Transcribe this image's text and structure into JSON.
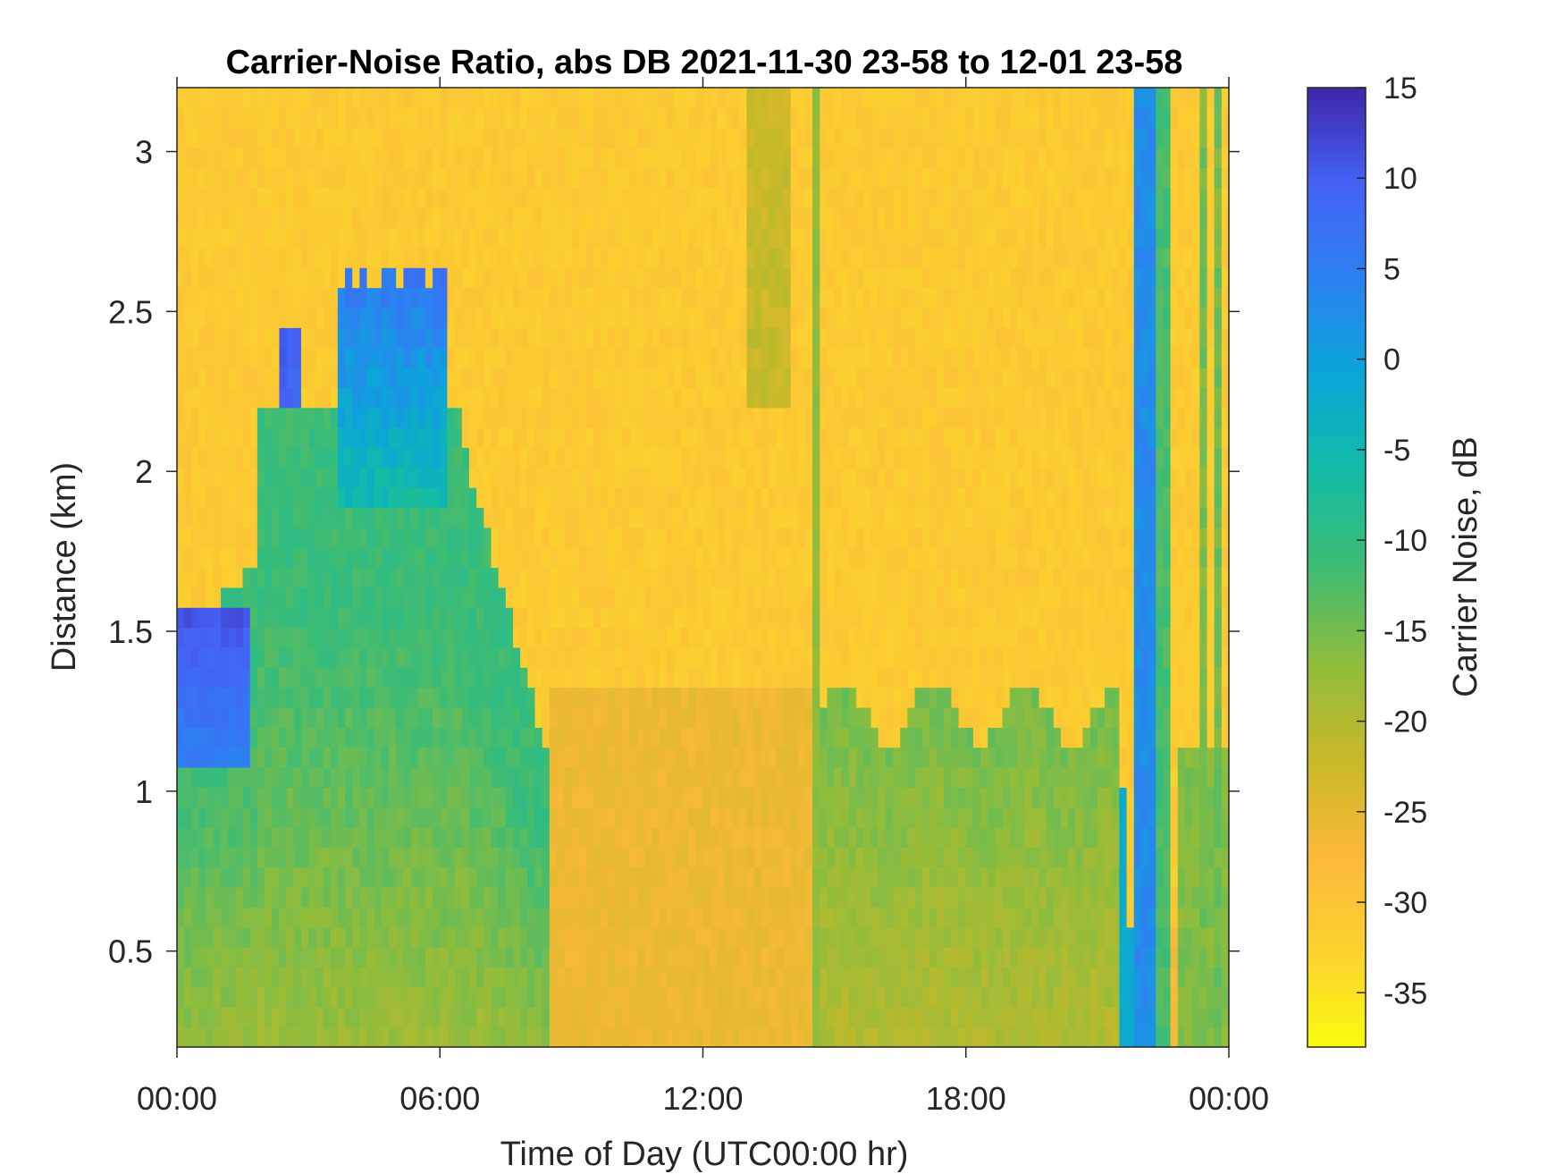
{
  "chart_data": {
    "type": "heatmap",
    "title": "Carrier-Noise Ratio, abs DB 2021-11-30 23-58 to 12-01 23-58",
    "xlabel": "Time of Day (UTC00:00 hr)",
    "ylabel": "Distance (km)",
    "x_units": "hours",
    "xlim": [
      0,
      24
    ],
    "x_ticks": [
      0,
      6,
      12,
      18,
      24
    ],
    "x_tick_labels": [
      "00:00",
      "06:00",
      "12:00",
      "18:00",
      "00:00"
    ],
    "ylim": [
      0.2,
      3.2
    ],
    "y_ticks": [
      0.5,
      1,
      1.5,
      2,
      2.5,
      3
    ],
    "y_tick_labels": [
      "0.5",
      "1",
      "1.5",
      "2",
      "2.5",
      "3"
    ],
    "colorbar": {
      "label": "Carrier Noise, dB",
      "range": [
        -38,
        15
      ],
      "ticks": [
        15,
        10,
        5,
        0,
        -5,
        -10,
        -15,
        -20,
        -25,
        -30,
        -35
      ],
      "tick_labels": [
        "15",
        "10",
        "5",
        "0",
        "-5",
        "-10",
        "-15",
        "-20",
        "-25",
        "-30",
        "-35"
      ],
      "colormap": "parula (reversed: yellow low, dark blue high)"
    },
    "background_level_db": -31,
    "features": [
      {
        "name": "morning boundary layer",
        "x_range": [
          0,
          8.5
        ],
        "top_km": [
          1.5,
          2.0
        ],
        "level_db": -14
      },
      {
        "name": "aerosol plumes",
        "x_range": [
          2.3,
          6.3
        ],
        "top_km": [
          2.4,
          2.6
        ],
        "level_db": 8
      },
      {
        "name": "afternoon layer",
        "x_range": [
          14.6,
          21.5
        ],
        "top_km": [
          1.2,
          1.4
        ],
        "level_db": -17
      },
      {
        "name": "cloud column",
        "x_range": [
          21.9,
          22.3
        ],
        "top_km": [
          3.2,
          3.2
        ],
        "level_db": 4
      }
    ]
  }
}
